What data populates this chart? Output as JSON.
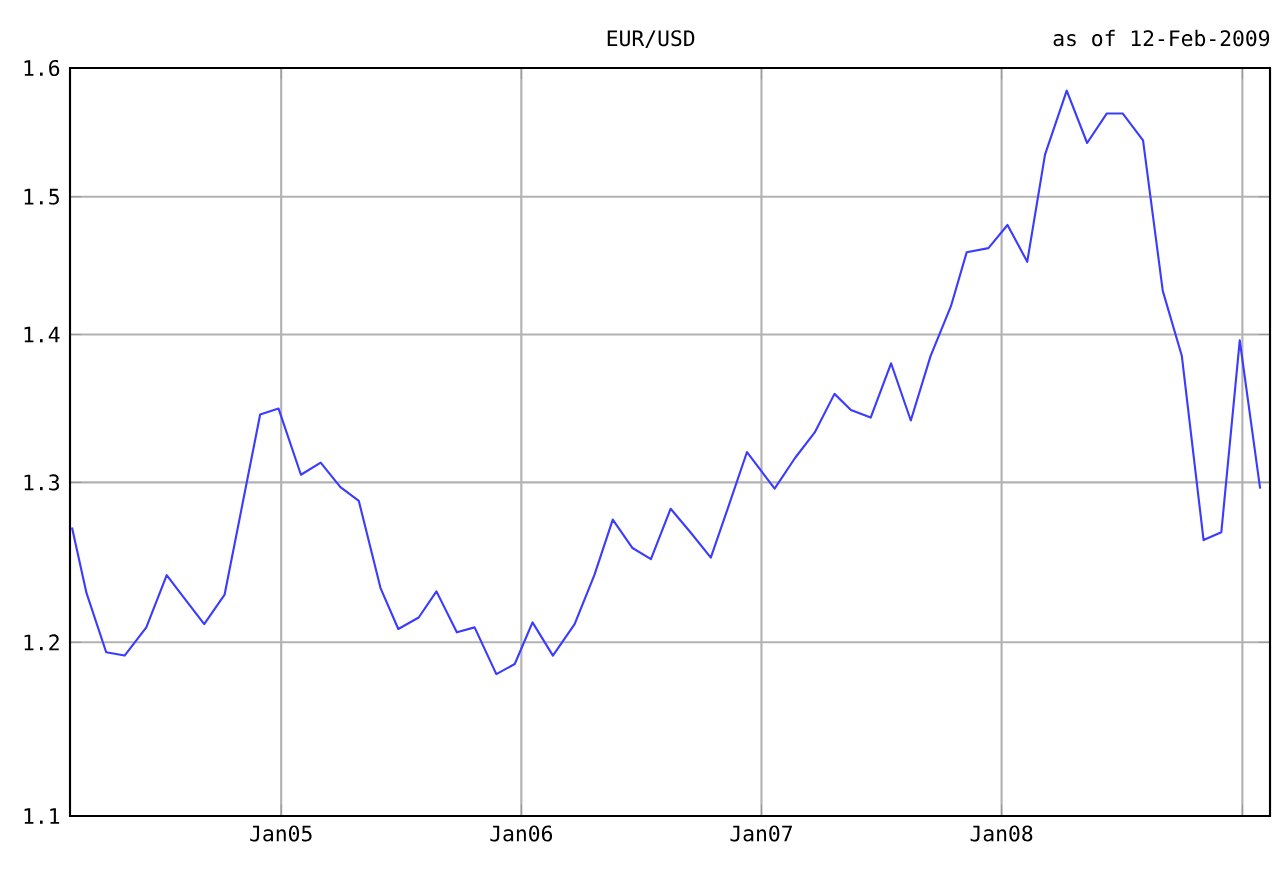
{
  "chart_data": {
    "type": "line",
    "title": "EUR/USD",
    "subtitle": "as of 12-Feb-2009",
    "x": [
      "2004-02-18",
      "2004-03-11",
      "2004-04-10",
      "2004-05-08",
      "2004-06-10",
      "2004-07-11",
      "2004-07-26",
      "2004-09-06",
      "2004-10-07",
      "2004-11-30",
      "2004-12-28",
      "2005-01-31",
      "2005-03-02",
      "2005-04-01",
      "2005-04-29",
      "2005-06-01",
      "2005-06-28",
      "2005-07-29",
      "2005-08-25",
      "2005-09-25",
      "2005-10-22",
      "2005-11-24",
      "2005-12-22",
      "2006-01-18",
      "2006-02-18",
      "2006-03-23",
      "2006-04-22",
      "2006-05-20",
      "2006-06-19",
      "2006-07-17",
      "2006-08-16",
      "2006-09-15",
      "2006-10-16",
      "2006-11-09",
      "2006-12-10",
      "2007-01-21",
      "2007-02-21",
      "2007-03-23",
      "2007-04-22",
      "2007-05-17",
      "2007-06-16",
      "2007-07-17",
      "2007-08-16",
      "2007-09-15",
      "2007-10-16",
      "2007-11-09",
      "2007-12-12",
      "2008-01-10",
      "2008-02-09",
      "2008-03-07",
      "2008-04-09",
      "2008-05-10",
      "2008-06-09",
      "2008-07-03",
      "2008-08-03",
      "2008-09-02",
      "2008-10-01",
      "2008-11-03",
      "2008-11-30",
      "2008-12-28",
      "2009-01-28"
    ],
    "values": [
      1.271,
      1.23,
      1.194,
      1.192,
      1.209,
      1.241,
      1.233,
      1.211,
      1.229,
      1.345,
      1.349,
      1.305,
      1.313,
      1.297,
      1.288,
      1.233,
      1.208,
      1.215,
      1.231,
      1.206,
      1.209,
      1.181,
      1.187,
      1.212,
      1.192,
      1.211,
      1.241,
      1.276,
      1.258,
      1.251,
      1.283,
      1.268,
      1.252,
      1.281,
      1.32,
      1.296,
      1.316,
      1.333,
      1.359,
      1.348,
      1.343,
      1.38,
      1.341,
      1.385,
      1.42,
      1.459,
      1.462,
      1.479,
      1.452,
      1.532,
      1.582,
      1.541,
      1.564,
      1.564,
      1.543,
      1.431,
      1.385,
      1.263,
      1.268,
      1.396,
      1.296
    ],
    "color": "#3c3cff",
    "xlim": [
      "2004-02-15",
      "2009-02-12"
    ],
    "xticks": [
      {
        "value": "2005-01-01",
        "label": "Jan05"
      },
      {
        "value": "2006-01-01",
        "label": "Jan06"
      },
      {
        "value": "2007-01-01",
        "label": "Jan07"
      },
      {
        "value": "2008-01-01",
        "label": "Jan08"
      },
      {
        "value": "2009-01-01",
        "label": null
      }
    ],
    "ylim": [
      1.1,
      1.6
    ],
    "yticks": [
      1.1,
      1.2,
      1.3,
      1.4,
      1.5,
      1.6
    ],
    "log": true,
    "grid": true
  }
}
